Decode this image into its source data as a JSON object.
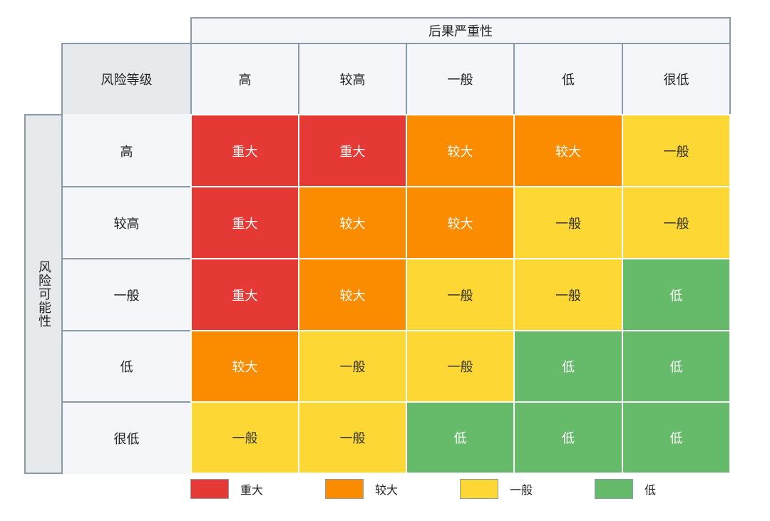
{
  "colors": {
    "重大": "#e53935",
    "较大": "#fb8c00",
    "一般": "#fdd835",
    "低": "#66bb6a"
  },
  "matrix": {
    "consequence_title": "后果严重性",
    "likelihood_title": "风险可能性",
    "corner_label": "风险等级",
    "columns": [
      "高",
      "较高",
      "一般",
      "低",
      "很低"
    ],
    "rows": [
      {
        "label": "高",
        "cells": [
          "重大",
          "重大",
          "较大",
          "较大",
          "一般"
        ]
      },
      {
        "label": "较高",
        "cells": [
          "重大",
          "较大",
          "较大",
          "一般",
          "一般"
        ]
      },
      {
        "label": "一般",
        "cells": [
          "重大",
          "较大",
          "一般",
          "一般",
          "低"
        ]
      },
      {
        "label": "低",
        "cells": [
          "较大",
          "一般",
          "一般",
          "低",
          "低"
        ]
      },
      {
        "label": "很低",
        "cells": [
          "一般",
          "一般",
          "低",
          "低",
          "低"
        ]
      }
    ]
  },
  "legend": [
    "重大",
    "较大",
    "一般",
    "低"
  ]
}
